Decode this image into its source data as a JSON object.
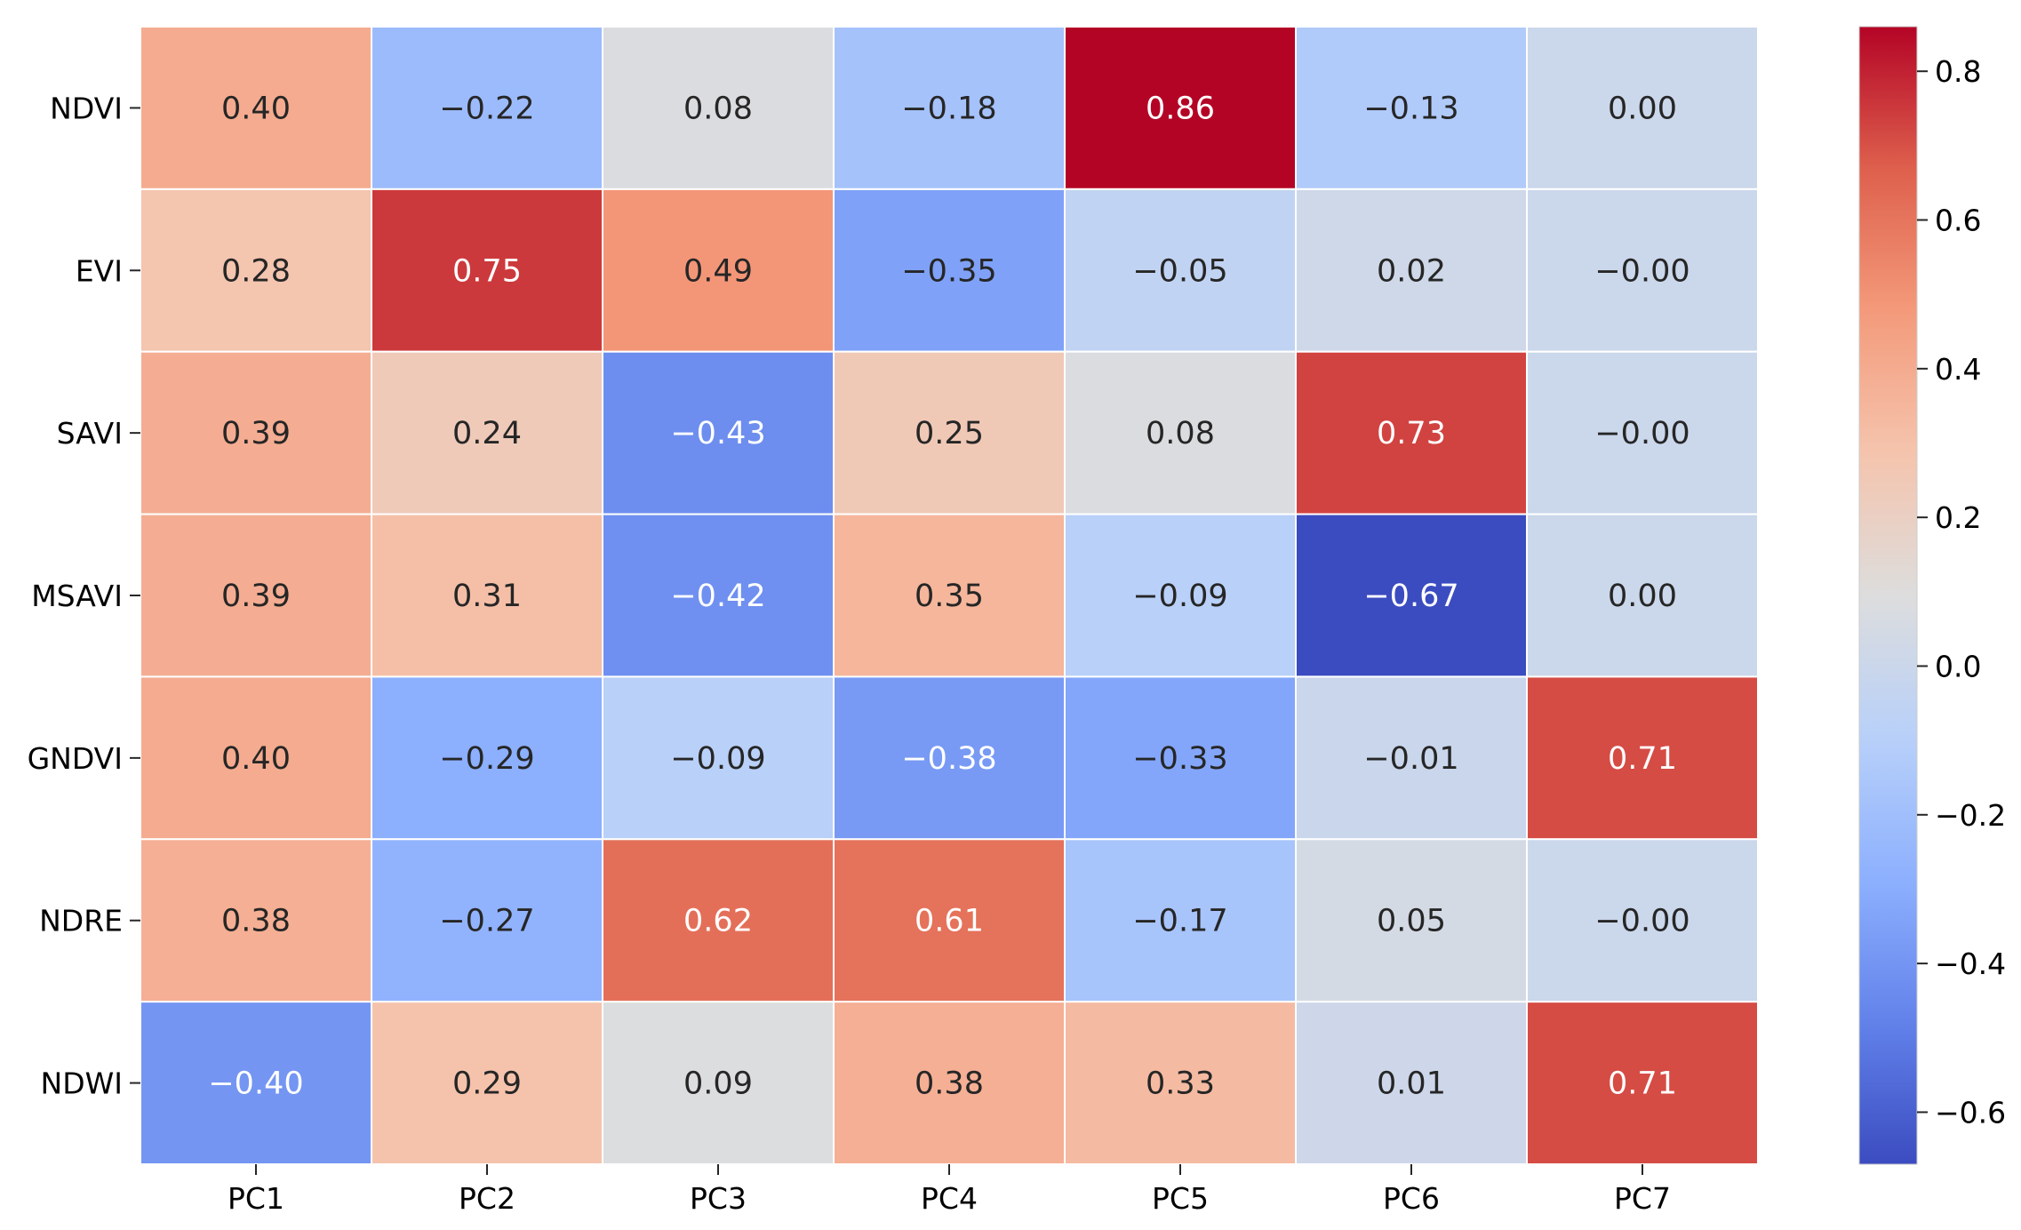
{
  "chart_data": {
    "type": "heatmap",
    "title": "",
    "xlabel": "",
    "ylabel": "",
    "columns": [
      "PC1",
      "PC2",
      "PC3",
      "PC4",
      "PC5",
      "PC6",
      "PC7"
    ],
    "rows": [
      "NDVI",
      "EVI",
      "SAVI",
      "MSAVI",
      "GNDVI",
      "NDRE",
      "NDWI"
    ],
    "values": [
      [
        0.4,
        -0.22,
        0.08,
        -0.18,
        0.86,
        -0.13,
        0.0
      ],
      [
        0.28,
        0.75,
        0.49,
        -0.35,
        -0.05,
        0.02,
        -0.0
      ],
      [
        0.39,
        0.24,
        -0.43,
        0.25,
        0.08,
        0.73,
        -0.0
      ],
      [
        0.39,
        0.31,
        -0.42,
        0.35,
        -0.09,
        -0.67,
        0.0
      ],
      [
        0.4,
        -0.29,
        -0.09,
        -0.38,
        -0.33,
        -0.01,
        0.71
      ],
      [
        0.38,
        -0.27,
        0.62,
        0.61,
        -0.17,
        0.05,
        -0.0
      ],
      [
        -0.4,
        0.29,
        0.09,
        0.38,
        0.33,
        0.01,
        0.71
      ]
    ],
    "cell_labels": [
      [
        "0.40",
        "−0.22",
        "0.08",
        "−0.18",
        "0.86",
        "−0.13",
        "0.00"
      ],
      [
        "0.28",
        "0.75",
        "0.49",
        "−0.35",
        "−0.05",
        "0.02",
        "−0.00"
      ],
      [
        "0.39",
        "0.24",
        "−0.43",
        "0.25",
        "0.08",
        "0.73",
        "−0.00"
      ],
      [
        "0.39",
        "0.31",
        "−0.42",
        "0.35",
        "−0.09",
        "−0.67",
        "0.00"
      ],
      [
        "0.40",
        "−0.29",
        "−0.09",
        "−0.38",
        "−0.33",
        "−0.01",
        "0.71"
      ],
      [
        "0.38",
        "−0.27",
        "0.62",
        "0.61",
        "−0.17",
        "0.05",
        "−0.00"
      ],
      [
        "−0.40",
        "0.29",
        "0.09",
        "0.38",
        "0.33",
        "0.01",
        "0.71"
      ]
    ],
    "colormap": "coolwarm",
    "vmin": -0.67,
    "vmax": 0.86,
    "colorbar": {
      "ticks": [
        -0.6,
        -0.4,
        -0.2,
        0.0,
        0.2,
        0.4,
        0.6,
        0.8
      ],
      "tick_labels": [
        "−0.6",
        "−0.4",
        "−0.2",
        "0.0",
        "0.2",
        "0.4",
        "0.6",
        "0.8"
      ]
    },
    "legend_position": "right"
  }
}
